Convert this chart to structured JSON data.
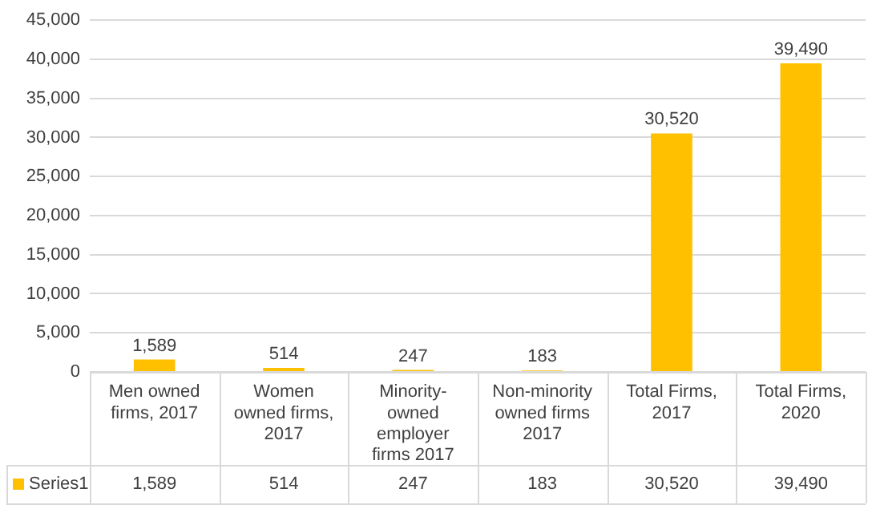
{
  "chart_data": {
    "type": "bar",
    "categories": [
      "Men owned firms, 2017",
      "Women owned firms, 2017",
      "Minority-owned employer firms  2017",
      "Non-minority owned firms 2017",
      "Total Firms, 2017",
      "Total Firms, 2020"
    ],
    "series": [
      {
        "name": "Series1",
        "color": "#ffc000",
        "values": [
          1589,
          514,
          247,
          183,
          30520,
          39490
        ],
        "value_labels": [
          "1,589",
          "514",
          "247",
          "183",
          "30,520",
          "39,490"
        ]
      }
    ],
    "ylim": [
      0,
      45000
    ],
    "yticks": [
      0,
      {
        "value": 5000,
        "label": "5,000"
      },
      {
        "value": 10000,
        "label": "10,000"
      },
      {
        "value": 15000,
        "label": "15,000"
      },
      {
        "value": 20000,
        "label": "20,000"
      },
      {
        "value": 25000,
        "label": "25,000"
      },
      {
        "value": 30000,
        "label": "30,000"
      },
      {
        "value": 35000,
        "label": "35,000"
      },
      {
        "value": 40000,
        "label": "40,000"
      },
      {
        "value": 45000,
        "label": "45,000"
      }
    ],
    "grid": "y"
  }
}
